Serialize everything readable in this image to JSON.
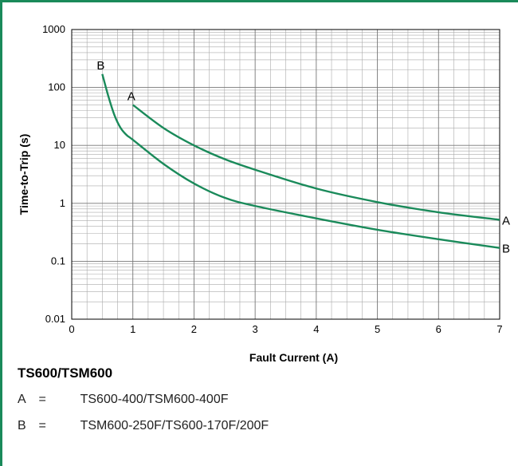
{
  "chart_data": {
    "type": "line",
    "xlabel": "Fault Current (A)",
    "ylabel": "Time-to-Trip (s)",
    "xlim": [
      0,
      7
    ],
    "ylim": [
      0.01,
      1000
    ],
    "yscale": "log",
    "grid": true,
    "x_ticks": [
      "0",
      "1",
      "2",
      "3",
      "4",
      "5",
      "6",
      "7"
    ],
    "y_ticks": [
      "0.01",
      "0.1",
      "1",
      "10",
      "100",
      "1000"
    ],
    "series": [
      {
        "name": "A",
        "x": [
          1.0,
          1.5,
          2.0,
          2.5,
          3.0,
          4.0,
          5.0,
          6.0,
          7.0
        ],
        "y": [
          50,
          20,
          10,
          5.8,
          3.8,
          1.8,
          1.05,
          0.7,
          0.52
        ]
      },
      {
        "name": "B",
        "x": [
          0.5,
          0.6,
          0.7,
          0.8,
          0.9,
          1.0,
          1.5,
          2.0,
          2.5,
          3.0,
          4.0,
          5.0,
          6.0,
          7.0
        ],
        "y": [
          170,
          70,
          33,
          20,
          15,
          12.5,
          4.8,
          2.2,
          1.25,
          0.9,
          0.55,
          0.35,
          0.24,
          0.17
        ]
      }
    ],
    "line_color": "#1a8a5a"
  },
  "legend": {
    "title": "TS600/TSM600",
    "items": [
      {
        "key": "A",
        "eq": "=",
        "text": "TS600-400/TSM600-400F"
      },
      {
        "key": "B",
        "eq": "=",
        "text": "TSM600-250F/TS600-170F/200F"
      }
    ]
  }
}
